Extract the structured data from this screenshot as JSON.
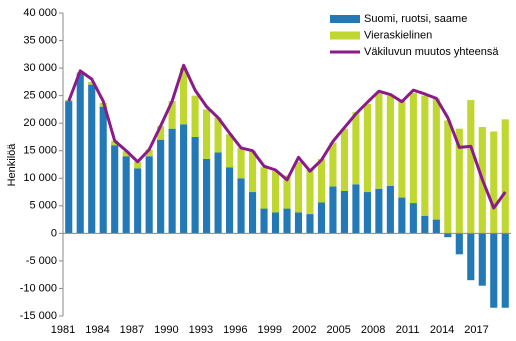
{
  "chart_data": {
    "type": "bar",
    "stacked": true,
    "y_label": "Henkilöä",
    "legend": "upper right",
    "grid": false,
    "categories": [
      "1981",
      null,
      null,
      "1984",
      null,
      null,
      "1987",
      null,
      null,
      "1990",
      null,
      null,
      "1993",
      null,
      null,
      "1996",
      null,
      null,
      "1999",
      null,
      null,
      "2002",
      null,
      null,
      "2005",
      null,
      null,
      "2008",
      null,
      null,
      "2011",
      null,
      null,
      "2014",
      null,
      null,
      "2017",
      null,
      null
    ],
    "ylim": [
      -15000,
      40000
    ],
    "yticks": [
      {
        "value": -15000,
        "label": "-15 000"
      },
      {
        "value": -10000,
        "label": "-10 000"
      },
      {
        "value": -5000,
        "label": "-5 000"
      },
      0,
      {
        "value": 5000,
        "label": "5 000"
      },
      {
        "value": 10000,
        "label": "10 000"
      },
      {
        "value": 15000,
        "label": "15 000"
      },
      {
        "value": 20000,
        "label": "20 000"
      },
      {
        "value": 25000,
        "label": "25 000"
      },
      {
        "value": 30000,
        "label": "30 000"
      },
      {
        "value": 35000,
        "label": "35 000"
      },
      {
        "value": 40000,
        "label": "40 000"
      }
    ],
    "series": [
      {
        "name": "Suomi, ruotsi, saame",
        "color": "#2279b5",
        "values": [
          24000,
          29000,
          27000,
          23000,
          16000,
          14000,
          11800,
          14000,
          17000,
          19000,
          19800,
          17500,
          13500,
          14700,
          12000,
          10000,
          7500,
          4500,
          3800,
          4500,
          3800,
          3500,
          5600,
          8500,
          7700,
          8900,
          7500,
          8100,
          8600,
          6500,
          5500,
          3200,
          2500,
          -700,
          -3800,
          -8500,
          -9500,
          -13500,
          -13500
        ]
      },
      {
        "name": "Vieraskielinen",
        "color": "#bfd730",
        "values": [
          200,
          300,
          500,
          700,
          800,
          900,
          1200,
          1200,
          2500,
          5000,
          10200,
          7500,
          9000,
          6300,
          6000,
          5500,
          7500,
          7500,
          7500,
          6000,
          9200,
          8000,
          7900,
          8000,
          11300,
          13100,
          16000,
          17400,
          16400,
          17500,
          20000,
          21800,
          22000,
          20500,
          19000,
          24200,
          19300,
          18500,
          20700
        ]
      },
      {
        "name": "Väkiluvun muutos yhteensä",
        "color": "#8b1a8a",
        "type": "line",
        "values": [
          24000,
          29500,
          28000,
          24000,
          16800,
          15000,
          13000,
          15200,
          19500,
          24000,
          30500,
          26000,
          23000,
          21000,
          18200,
          15500,
          15000,
          12200,
          11500,
          9700,
          13800,
          11300,
          13300,
          16700,
          19200,
          21700,
          23800,
          25800,
          25200,
          23900,
          26000,
          25300,
          24500,
          21000,
          15600,
          15800,
          9800,
          4600,
          7500
        ]
      }
    ]
  }
}
